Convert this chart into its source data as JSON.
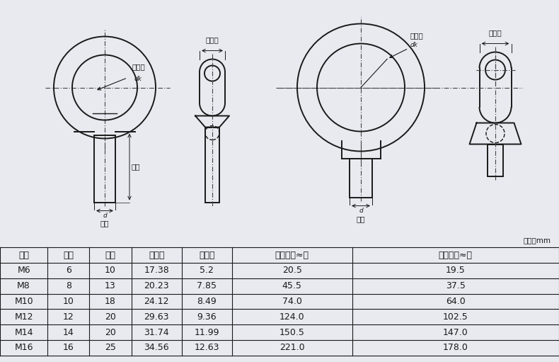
{
  "bg_color": "#e8eaf0",
  "drawing_bg": "#e8eaf0",
  "table_bg": "#ffffff",
  "unit_label": "单位：mm",
  "headers": [
    "规格",
    "直径",
    "长度",
    "环内径",
    "环直径",
    "吊环单个≈克",
    "吊母单个≈克"
  ],
  "rows": [
    [
      "M6",
      "6",
      "10",
      "17.38",
      "5.2",
      "20.5",
      "19.5"
    ],
    [
      "M8",
      "8",
      "13",
      "20.23",
      "7.85",
      "45.5",
      "37.5"
    ],
    [
      "M10",
      "10",
      "18",
      "24.12",
      "8.49",
      "74.0",
      "64.0"
    ],
    [
      "M12",
      "12",
      "20",
      "29.63",
      "9.36",
      "124.0",
      "102.5"
    ],
    [
      "M14",
      "14",
      "20",
      "31.74",
      "11.99",
      "150.5",
      "147.0"
    ],
    [
      "M16",
      "16",
      "25",
      "34.56",
      "12.63",
      "221.0",
      "178.0"
    ]
  ],
  "line_color": "#1a1a1a",
  "dash_color": "#444444",
  "label_fontsize": 7.5,
  "table_fontsize": 9,
  "col_starts": [
    0.0,
    0.085,
    0.16,
    0.235,
    0.325,
    0.415,
    0.63
  ],
  "col_ends": [
    0.085,
    0.16,
    0.235,
    0.325,
    0.415,
    0.63,
    1.0
  ]
}
